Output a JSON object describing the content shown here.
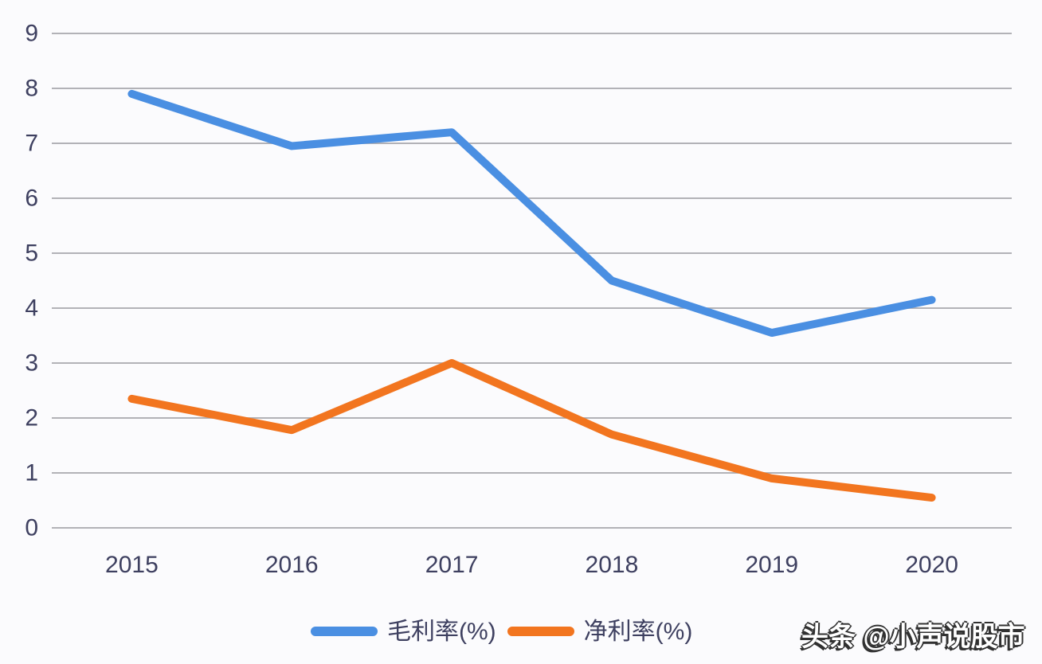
{
  "chart_data": {
    "type": "line",
    "title": "",
    "xlabel": "",
    "ylabel": "",
    "categories": [
      "2015",
      "2016",
      "2017",
      "2018",
      "2019",
      "2020"
    ],
    "series": [
      {
        "name": "毛利率(%)",
        "color": "#4a8fe2",
        "values": [
          7.9,
          6.95,
          7.2,
          4.5,
          3.55,
          4.15
        ]
      },
      {
        "name": "净利率(%)",
        "color": "#f2751f",
        "values": [
          2.35,
          1.78,
          3.0,
          1.7,
          0.9,
          0.55
        ]
      }
    ],
    "ylim": [
      0,
      9
    ],
    "yticks": [
      0,
      1,
      2,
      3,
      4,
      5,
      6,
      7,
      8,
      9
    ],
    "grid": true,
    "legend_position": "bottom",
    "colors": {
      "grid": "#a8a8ad",
      "tick_text": "#3e4060",
      "background": "#fbfbfd"
    }
  },
  "watermark": {
    "text": "头条 @小声说股市"
  }
}
